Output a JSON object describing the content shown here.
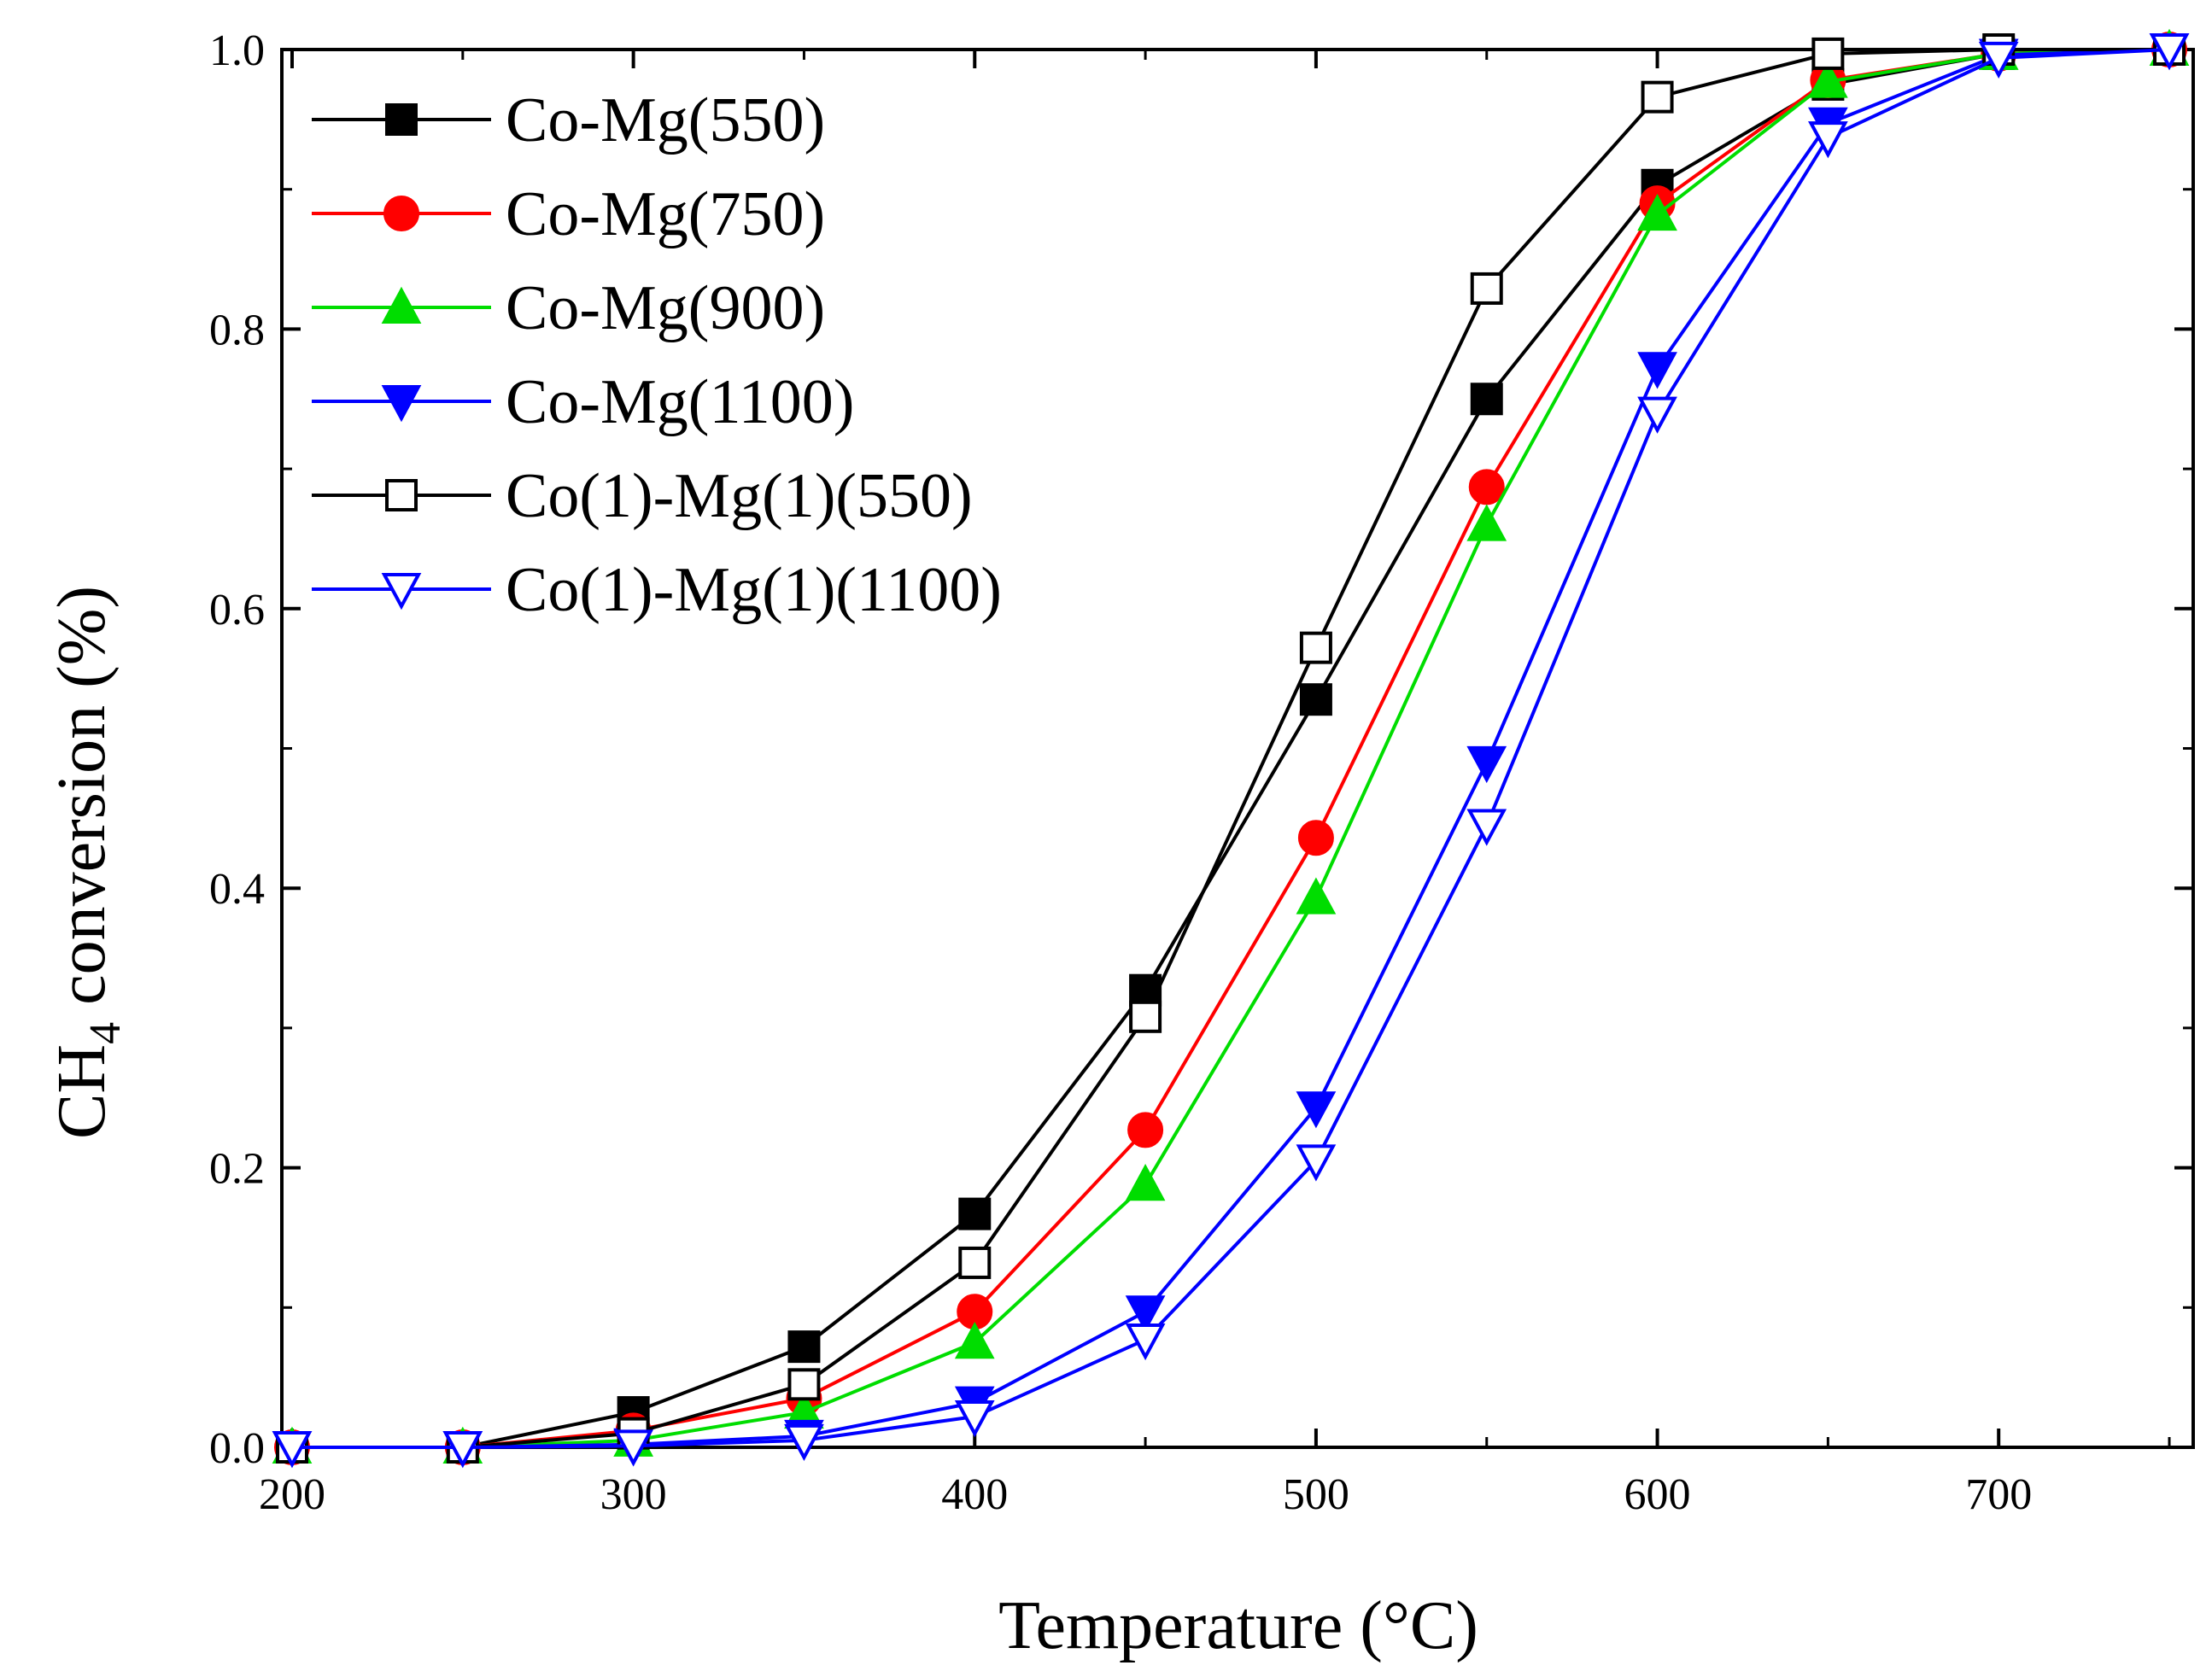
{
  "chart_data": {
    "type": "line",
    "title": "",
    "xlabel": "Temperature (°C)",
    "ylabel": "CH",
    "ylabel_sub": "4",
    "ylabel_rest": " conversion (%)",
    "xlim": [
      197,
      757
    ],
    "ylim": [
      0,
      1.0
    ],
    "xticks": [
      200,
      300,
      400,
      500,
      600,
      700
    ],
    "xtick_labels": [
      "200",
      "300",
      "400",
      "500",
      "600",
      "700"
    ],
    "yticks": [
      0,
      0.2,
      0.4,
      0.6,
      0.8,
      1.0
    ],
    "ytick_labels": [
      "0.0",
      "0.2",
      "0.4",
      "0.6",
      "0.8",
      "1.0"
    ],
    "x": [
      200,
      250,
      300,
      350,
      400,
      450,
      500,
      550,
      600,
      650,
      700,
      750
    ],
    "legend_position": "top-left",
    "series": [
      {
        "name": "Co-Mg(550)",
        "color": "#000000",
        "marker": "square",
        "filled": true,
        "values": [
          0.0,
          0.0,
          0.025,
          0.072,
          0.167,
          0.327,
          0.535,
          0.75,
          0.903,
          0.975,
          0.997,
          1.0
        ]
      },
      {
        "name": "Co-Mg(750)",
        "color": "#ff0000",
        "marker": "circle",
        "filled": true,
        "values": [
          0.0,
          0.0,
          0.012,
          0.035,
          0.097,
          0.227,
          0.436,
          0.687,
          0.89,
          0.978,
          0.997,
          1.0
        ]
      },
      {
        "name": "Co-Mg(900)",
        "color": "#00dd00",
        "marker": "triangle-up",
        "filled": true,
        "values": [
          0.0,
          0.0,
          0.005,
          0.025,
          0.075,
          0.188,
          0.393,
          0.66,
          0.882,
          0.977,
          0.997,
          1.0
        ]
      },
      {
        "name": "Co-Mg(1100)",
        "color": "#0000ff",
        "marker": "triangle-down",
        "filled": true,
        "values": [
          0.0,
          0.0,
          0.002,
          0.008,
          0.032,
          0.097,
          0.243,
          0.49,
          0.772,
          0.947,
          0.996,
          1.0
        ]
      },
      {
        "name": "Co(1)-Mg(1)(550)",
        "color": "#000000",
        "marker": "square",
        "filled": false,
        "values": [
          0.0,
          0.0,
          0.01,
          0.045,
          0.132,
          0.308,
          0.572,
          0.829,
          0.966,
          0.997,
          1.0,
          1.0
        ]
      },
      {
        "name": "Co(1)-Mg(1)(1100)",
        "color": "#0000ff",
        "marker": "triangle-down",
        "filled": false,
        "values": [
          0.0,
          0.0,
          0.001,
          0.005,
          0.022,
          0.077,
          0.205,
          0.445,
          0.74,
          0.937,
          0.994,
          1.0
        ]
      }
    ]
  }
}
